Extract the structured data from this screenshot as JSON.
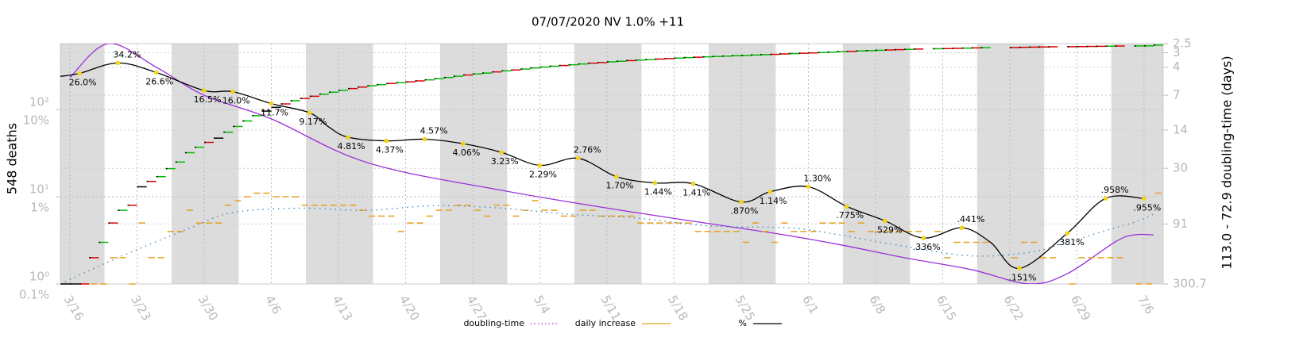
{
  "chart_data": {
    "type": "line",
    "title": "07/07/2020 NV 1.0% +11",
    "ylabel": "548 deaths",
    "y2label": "113.0 - 72.9 doubling-time (days)",
    "x": [
      "3/15",
      "3/16",
      "3/17",
      "3/18",
      "3/19",
      "3/20",
      "3/21",
      "3/22",
      "3/23",
      "3/24",
      "3/25",
      "3/26",
      "3/27",
      "3/28",
      "3/29",
      "3/30",
      "3/31",
      "4/1",
      "4/2",
      "4/3",
      "4/4",
      "4/5",
      "4/6",
      "4/7",
      "4/8",
      "4/9",
      "4/10",
      "4/11",
      "4/12",
      "4/13",
      "4/14",
      "4/15",
      "4/16",
      "4/17",
      "4/18",
      "4/19",
      "4/20",
      "4/21",
      "4/22",
      "4/23",
      "4/24",
      "4/25",
      "4/26",
      "4/27",
      "4/28",
      "4/29",
      "4/30",
      "5/1",
      "5/2",
      "5/3",
      "5/4",
      "5/5",
      "5/6",
      "5/7",
      "5/8",
      "5/9",
      "5/10",
      "5/11",
      "5/12",
      "5/13",
      "5/14",
      "5/15",
      "5/16",
      "5/17",
      "5/18",
      "5/19",
      "5/20",
      "5/21",
      "5/22",
      "5/23",
      "5/24",
      "5/25",
      "5/26",
      "5/27",
      "5/28",
      "5/29",
      "5/30",
      "5/31",
      "6/1",
      "6/2",
      "6/3",
      "6/4",
      "6/5",
      "6/6",
      "6/7",
      "6/8",
      "6/9",
      "6/10",
      "6/11",
      "6/12",
      "6/13",
      "6/14",
      "6/15",
      "6/16",
      "6/17",
      "6/18",
      "6/19",
      "6/20",
      "6/21",
      "6/22",
      "6/23",
      "6/24",
      "6/25",
      "6/26",
      "6/27",
      "6/28",
      "6/29",
      "6/30",
      "7/1",
      "7/2",
      "7/3",
      "7/4",
      "7/5",
      "7/6",
      "7/7"
    ],
    "xlim": [
      "3/15",
      "7/8"
    ],
    "xticks": [
      "3/16",
      "3/23",
      "3/30",
      "4/6",
      "4/13",
      "4/20",
      "4/27",
      "5/4",
      "5/11",
      "5/18",
      "5/25",
      "6/1",
      "6/8",
      "6/15",
      "6/22",
      "6/29",
      "7/6"
    ],
    "ylim": [
      1,
      570
    ],
    "yticks": [
      {
        "value": 1,
        "label": "10⁰"
      },
      {
        "value": 10,
        "label": "10¹"
      },
      {
        "value": 100,
        "label": "10²"
      }
    ],
    "y3lim": [
      0.1,
      57
    ],
    "y3ticks": [
      {
        "value": 0.1,
        "label": "0.1%"
      },
      {
        "value": 1,
        "label": "1%"
      },
      {
        "value": 10,
        "label": "10%"
      }
    ],
    "y2lim": [
      2.5,
      300.7
    ],
    "y2ticks": [
      2.5,
      3,
      4,
      7,
      14,
      30,
      91,
      300.7
    ],
    "y2inverted": true,
    "log_scale": true,
    "grid": true,
    "series": [
      {
        "name": "doubling-time",
        "color": "#9b2fd6",
        "axis": "y2",
        "style": "line",
        "x": [
          "3/16",
          "3/20",
          "3/25",
          "3/30",
          "4/6",
          "4/16",
          "4/30",
          "5/14",
          "5/28",
          "6/4",
          "6/11",
          "6/18",
          "6/24",
          "6/28",
          "7/3",
          "7/5",
          "7/7"
        ],
        "values": [
          4.9,
          2.5,
          4.0,
          7.0,
          11.2,
          26.8,
          46.5,
          72.5,
          108,
          136,
          178,
          226,
          300,
          245,
          130,
          113,
          113.0
        ]
      },
      {
        "name": "daily increase",
        "color": "#e8a020",
        "style": "dashes",
        "values": [
          1,
          null,
          null,
          1,
          1,
          2,
          2,
          1,
          5,
          2,
          2,
          4,
          4,
          7,
          5,
          5,
          5,
          8,
          9,
          10,
          11,
          11,
          10,
          10,
          10,
          8,
          8,
          8,
          8,
          8,
          8,
          7,
          6,
          6,
          6,
          4,
          5,
          5,
          6,
          7,
          7,
          8,
          8,
          7,
          6,
          8,
          8,
          6,
          7,
          9,
          7,
          7,
          6,
          6,
          7,
          7,
          6,
          6,
          6,
          6,
          5,
          5,
          5,
          5,
          5,
          5,
          4,
          4,
          4,
          4,
          4,
          3,
          5,
          4,
          3,
          5,
          4,
          4,
          4,
          5,
          5,
          5,
          4,
          5,
          4,
          4,
          4,
          4,
          4,
          4,
          null,
          4,
          2,
          3,
          3,
          3,
          3,
          null,
          null,
          2,
          3,
          3,
          2,
          2,
          null,
          1,
          2,
          2,
          2,
          2,
          2,
          null,
          1,
          1,
          11
        ]
      },
      {
        "name": "%",
        "color": "#000000",
        "axis": "y3",
        "style": "line",
        "marker_color": "#f2d21b",
        "x": [
          "3/15",
          "3/17",
          "3/21",
          "3/25",
          "3/30",
          "4/2",
          "4/6",
          "4/10",
          "4/12",
          "4/14",
          "4/18",
          "4/22",
          "4/26",
          "4/30",
          "5/4",
          "5/8",
          "5/12",
          "5/16",
          "5/20",
          "5/25",
          "5/28",
          "6/1",
          "6/5",
          "6/9",
          "6/13",
          "6/17",
          "6/20",
          "6/23",
          "6/28",
          "7/2",
          "7/6"
        ],
        "values": [
          24,
          26.0,
          34.2,
          26.6,
          16.5,
          16.0,
          11.7,
          9.17,
          6.3,
          4.81,
          4.37,
          4.57,
          4.06,
          3.23,
          2.29,
          2.76,
          1.7,
          1.44,
          1.41,
          0.87,
          1.14,
          1.3,
          0.775,
          0.529,
          0.336,
          0.441,
          0.3,
          0.151,
          0.381,
          0.958,
          0.955
        ],
        "value_labels": [
          null,
          "26.0%",
          "34.2%",
          "26.6%",
          "16.5%",
          "16.0%",
          "11.7%",
          "9.17%",
          null,
          "4.81%",
          "4.37%",
          "4.57%",
          "4.06%",
          "3.23%",
          "2.29%",
          "2.76%",
          "1.70%",
          "1.44%",
          "1.41%",
          ".870%",
          "1.14%",
          "1.30%",
          ".775%",
          ".529%",
          ".336%",
          ".441%",
          null,
          ".151%",
          ".381%",
          ".958%",
          ".955%"
        ]
      },
      {
        "style": "steps",
        "values": [
          1,
          1,
          1,
          2,
          3,
          5,
          7,
          8,
          13,
          15,
          17,
          21,
          25,
          32,
          37,
          42,
          47,
          55,
          64,
          74,
          85,
          96,
          106,
          116,
          126,
          134,
          142,
          150,
          158,
          166,
          174,
          181,
          187,
          193,
          199,
          203,
          208,
          213,
          219,
          226,
          233,
          241,
          249,
          256,
          262,
          270,
          278,
          284,
          291,
          300,
          307,
          314,
          320,
          326,
          333,
          340,
          346,
          352,
          358,
          364,
          369,
          374,
          379,
          384,
          389,
          394,
          398,
          402,
          406,
          410,
          414,
          417,
          422,
          426,
          429,
          434,
          438,
          442,
          446,
          451,
          456,
          461,
          465,
          470,
          474,
          478,
          482,
          486,
          490,
          494,
          null,
          498,
          500,
          503,
          506,
          509,
          512,
          null,
          null,
          514,
          517,
          520,
          522,
          524,
          null,
          525,
          527,
          529,
          531,
          533,
          535,
          null,
          536,
          537,
          548
        ],
        "colors": [
          "#000",
          "#000",
          "#d00",
          "#d00",
          "#0b0",
          "#d00",
          "#0b0",
          "#d00",
          "#000",
          "#d00",
          "#0b0",
          "#0b0",
          "#0b0",
          "#0b0",
          "#0b0",
          "#d00",
          "#000",
          "#0b0",
          "#0b0",
          "#0b0",
          "#0b0",
          "#000",
          "#000",
          "#d00",
          "#0b0",
          "#d00",
          "#d00",
          "#0b0",
          "#0b0",
          "#0b0",
          "#d00",
          "#d00",
          "#0b0",
          "#0b0",
          "#d00",
          "#0b0",
          "#d00",
          "#d00",
          "#0b0",
          "#0b0",
          "#0b0",
          "#0b0",
          "#d00",
          "#0b0",
          "#0b0",
          "#d00",
          "#0b0",
          "#d00",
          "#0b0",
          "#0b0",
          "#0b0",
          "#0b0",
          "#d00",
          "#0b0",
          "#0b0",
          "#d00",
          "#d00",
          "#0b0",
          "#0b0",
          "#d00",
          "#0b0",
          "#0b0",
          "#d00",
          "#d00",
          "#0b0",
          "#0b0",
          "#d00",
          "#0b0",
          "#0b0",
          "#0b0",
          "#0b0",
          "#0b0",
          "#0b0",
          "#0b0",
          "#d00",
          "#d00",
          "#0b0",
          "#d00",
          "#d00",
          "#0b0",
          "#0b0",
          "#0b0",
          "#d00",
          "#0b0",
          "#0b0",
          "#0b0",
          "#d00",
          "#d00",
          "#0b0",
          "#d00",
          "#0b0",
          "#0b0",
          "#d00",
          "#d00",
          "#0b0",
          "#d00",
          "#0b0",
          "#0b0",
          "#0b0",
          "#d00",
          "#d00",
          "#d00",
          "#d00",
          "#d00",
          "#0b0",
          "#d00",
          "#d00",
          "#d00",
          "#d00",
          "#0b0",
          "#d00",
          "#0b0",
          "#0b0",
          "#0b0",
          "#0b0"
        ]
      },
      {
        "color": "#3a87b8",
        "style": "dotted",
        "x": [
          "3/15",
          "3/21",
          "3/29",
          "4/2",
          "4/9",
          "4/16",
          "4/23",
          "4/30",
          "5/7",
          "5/14",
          "5/22",
          "5/30",
          "6/4",
          "6/11",
          "6/18",
          "6/24",
          "6/28",
          "7/2",
          "7/5",
          "7/7"
        ],
        "values": [
          1,
          2,
          4.6,
          6.6,
          7.4,
          7,
          7.9,
          7.4,
          6.3,
          5.7,
          4.6,
          4.4,
          3.7,
          2.7,
          2.1,
          2.3,
          3,
          4.1,
          5.1,
          6.3
        ]
      }
    ]
  }
}
